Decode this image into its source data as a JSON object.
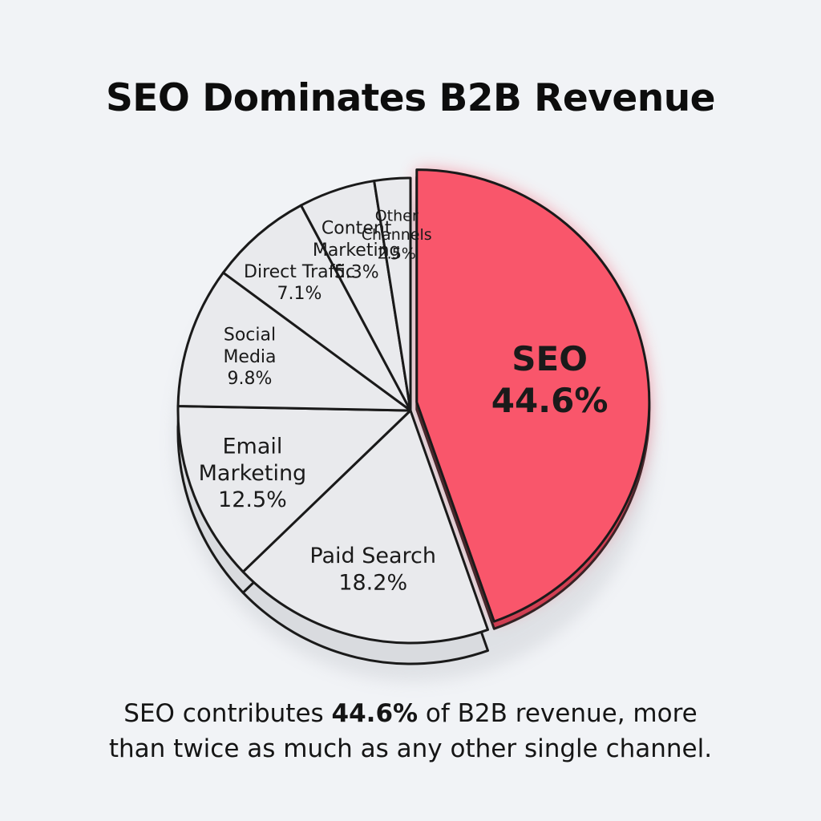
{
  "chart_data": {
    "type": "pie",
    "title": "SEO Dominates B2B Revenue",
    "slices": [
      {
        "label": "SEO",
        "value": 44.6,
        "value_label": "44.6%",
        "color": "#f9566b",
        "highlight": true,
        "label_lines": [
          "SEO"
        ]
      },
      {
        "label": "Paid Search",
        "value": 18.2,
        "value_label": "18.2%",
        "color": "#e9eaed",
        "highlight": false,
        "label_lines": [
          "Paid Search"
        ]
      },
      {
        "label": "Email Marketing",
        "value": 12.5,
        "value_label": "12.5%",
        "color": "#e9eaed",
        "highlight": false,
        "label_lines": [
          "Email",
          "Marketing"
        ]
      },
      {
        "label": "Social Media",
        "value": 9.8,
        "value_label": "9.8%",
        "color": "#e9eaed",
        "highlight": false,
        "label_lines": [
          "Social",
          "Media"
        ]
      },
      {
        "label": "Direct Traffic",
        "value": 7.1,
        "value_label": "7.1%",
        "color": "#e9eaed",
        "highlight": false,
        "label_lines": [
          "Direct Traffic"
        ]
      },
      {
        "label": "Content Marketing",
        "value": 5.3,
        "value_label": "5.3%",
        "color": "#e9eaed",
        "highlight": false,
        "label_lines": [
          "Content",
          "Marketing"
        ]
      },
      {
        "label": "Other Channels",
        "value": 2.5,
        "value_label": "2.5%",
        "color": "#e9eaed",
        "highlight": false,
        "label_lines": [
          "Other",
          "Channels"
        ]
      }
    ],
    "start": "top, clockwise",
    "exploded_slice": "SEO",
    "style": "3d"
  },
  "caption": {
    "before": "SEO contributes ",
    "bold": "44.6%",
    "after": " of B2B revenue, more",
    "line2": "than twice as much as any other single channel."
  },
  "colors": {
    "background": "#f1f3f6",
    "highlight": "#f9566b",
    "slice": "#e9eaed",
    "outline": "#1a1a1a"
  }
}
